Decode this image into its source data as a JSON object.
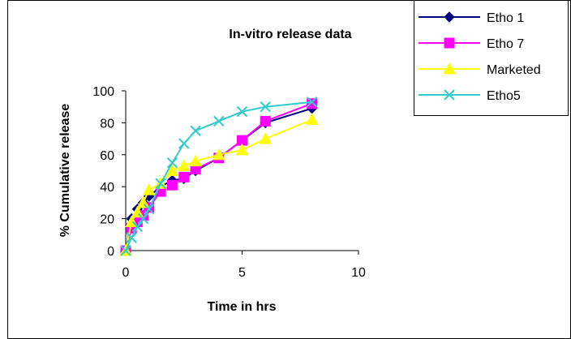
{
  "chart_data": {
    "type": "line",
    "title": "In-vitro release data",
    "xlabel": "Time in hrs",
    "ylabel": "% Cumulative release",
    "xlim": [
      0,
      10
    ],
    "ylim": [
      0,
      100
    ],
    "x_ticks": [
      0,
      5,
      10
    ],
    "y_ticks": [
      0,
      20,
      40,
      60,
      80,
      100
    ],
    "grid": false,
    "legend_position": "top-right",
    "series": [
      {
        "name": "Etho 1",
        "color": "#000080",
        "marker": "diamond",
        "x": [
          0,
          0.25,
          0.5,
          0.75,
          1,
          1.5,
          2,
          2.5,
          3,
          4,
          5,
          6,
          8
        ],
        "y": [
          0,
          20,
          26,
          30,
          34,
          40,
          44,
          45,
          50,
          58,
          69,
          80,
          89
        ]
      },
      {
        "name": "Etho 7",
        "color": "#ff00ff",
        "marker": "square",
        "x": [
          0,
          0.25,
          0.5,
          0.75,
          1,
          1.5,
          2,
          2.5,
          3,
          4,
          5,
          6,
          8
        ],
        "y": [
          0,
          14,
          18,
          22,
          27,
          37,
          41,
          46,
          51,
          58,
          69,
          81,
          92
        ]
      },
      {
        "name": "Marketed",
        "color": "#ffff00",
        "marker": "triangle",
        "x": [
          0,
          0.25,
          0.5,
          0.75,
          1,
          1.5,
          2,
          2.5,
          3,
          4,
          5,
          6,
          8
        ],
        "y": [
          0,
          18,
          24,
          30,
          38,
          42,
          50,
          53,
          56,
          60,
          63,
          70,
          82
        ]
      },
      {
        "name": "Etho5",
        "color": "#33cccc",
        "marker": "x",
        "x": [
          0,
          0.25,
          0.5,
          0.75,
          1,
          1.5,
          2,
          2.5,
          3,
          4,
          5,
          6,
          8
        ],
        "y": [
          0,
          8,
          15,
          20,
          26,
          42,
          55,
          67,
          75,
          81,
          87,
          90,
          93
        ]
      }
    ]
  }
}
